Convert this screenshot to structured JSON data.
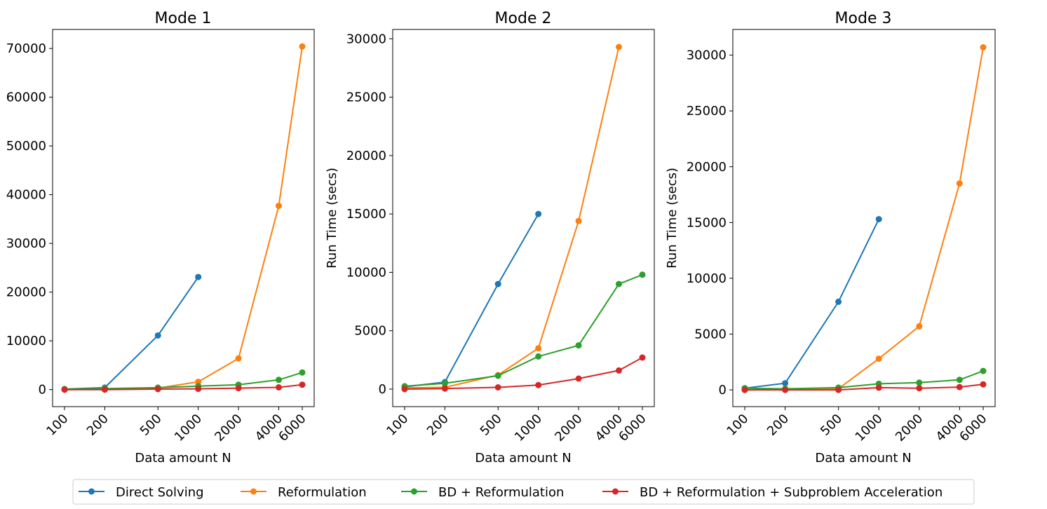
{
  "colors": {
    "Direct Solving": "#1f77b4",
    "Reformulation": "#ff7f0e",
    "BD + Reformulation": "#2ca02c",
    "BD + Reformulation + Subproblem Acceleration": "#d62728"
  },
  "legend": {
    "entries": [
      "Direct Solving",
      "Reformulation",
      "BD + Reformulation",
      "BD + Reformulation + Subproblem Acceleration"
    ],
    "placement": "bottom-center"
  },
  "chart_data": [
    {
      "type": "line",
      "title": "Mode 1",
      "xlabel": "Data amount N",
      "ylabel": "",
      "x_scale": "log",
      "categories": [
        "100",
        "200",
        "500",
        "1000",
        "2000",
        "4000",
        "6000"
      ],
      "x": [
        100,
        200,
        500,
        1000,
        2000,
        4000,
        6000
      ],
      "ylim": [
        -3500,
        73900
      ],
      "yticks": [
        0,
        10000,
        20000,
        30000,
        40000,
        50000,
        60000,
        70000
      ],
      "series": [
        {
          "name": "Direct Solving",
          "values": [
            100,
            400,
            11100,
            23100,
            null,
            null,
            null
          ]
        },
        {
          "name": "Reformulation",
          "values": [
            0,
            100,
            300,
            1600,
            6400,
            37700,
            70400
          ]
        },
        {
          "name": "BD + Reformulation",
          "values": [
            100,
            200,
            400,
            700,
            1000,
            2000,
            3500
          ]
        },
        {
          "name": "BD + Reformulation + Subproblem Acceleration",
          "values": [
            0,
            0,
            100,
            150,
            300,
            450,
            1000
          ]
        }
      ]
    },
    {
      "type": "line",
      "title": "Mode 2",
      "xlabel": "Data amount N",
      "ylabel": "Run Time (secs)",
      "x_scale": "log",
      "categories": [
        "100",
        "200",
        "500",
        "1000",
        "2000",
        "4000",
        "6000"
      ],
      "x": [
        100,
        200,
        500,
        1000,
        2000,
        4000,
        6000
      ],
      "ylim": [
        -1500,
        30800
      ],
      "yticks": [
        0,
        5000,
        10000,
        15000,
        20000,
        25000,
        30000
      ],
      "series": [
        {
          "name": "Direct Solving",
          "values": [
            200,
            600,
            9000,
            15000,
            null,
            null,
            null
          ]
        },
        {
          "name": "Reformulation",
          "values": [
            100,
            150,
            1200,
            3500,
            14400,
            29300,
            null
          ]
        },
        {
          "name": "BD + Reformulation",
          "values": [
            250,
            500,
            1150,
            2800,
            3750,
            9000,
            9800
          ]
        },
        {
          "name": "BD + Reformulation + Subproblem Acceleration",
          "values": [
            0,
            50,
            150,
            350,
            900,
            1600,
            2700
          ]
        }
      ]
    },
    {
      "type": "line",
      "title": "Mode 3",
      "xlabel": "Data amount N",
      "ylabel": "Run Time (secs)",
      "x_scale": "log",
      "categories": [
        "100",
        "200",
        "500",
        "1000",
        "2000",
        "4000",
        "6000"
      ],
      "x": [
        100,
        200,
        500,
        1000,
        2000,
        4000,
        6000
      ],
      "ylim": [
        -1500,
        32300
      ],
      "yticks": [
        0,
        5000,
        10000,
        15000,
        20000,
        25000,
        30000
      ],
      "series": [
        {
          "name": "Direct Solving",
          "values": [
            150,
            600,
            7900,
            15300,
            null,
            null,
            null
          ]
        },
        {
          "name": "Reformulation",
          "values": [
            0,
            50,
            100,
            2800,
            5700,
            18500,
            30700
          ]
        },
        {
          "name": "BD + Reformulation",
          "values": [
            150,
            100,
            200,
            550,
            650,
            900,
            1700
          ]
        },
        {
          "name": "BD + Reformulation + Subproblem Acceleration",
          "values": [
            0,
            0,
            0,
            200,
            150,
            250,
            500
          ]
        }
      ]
    }
  ]
}
